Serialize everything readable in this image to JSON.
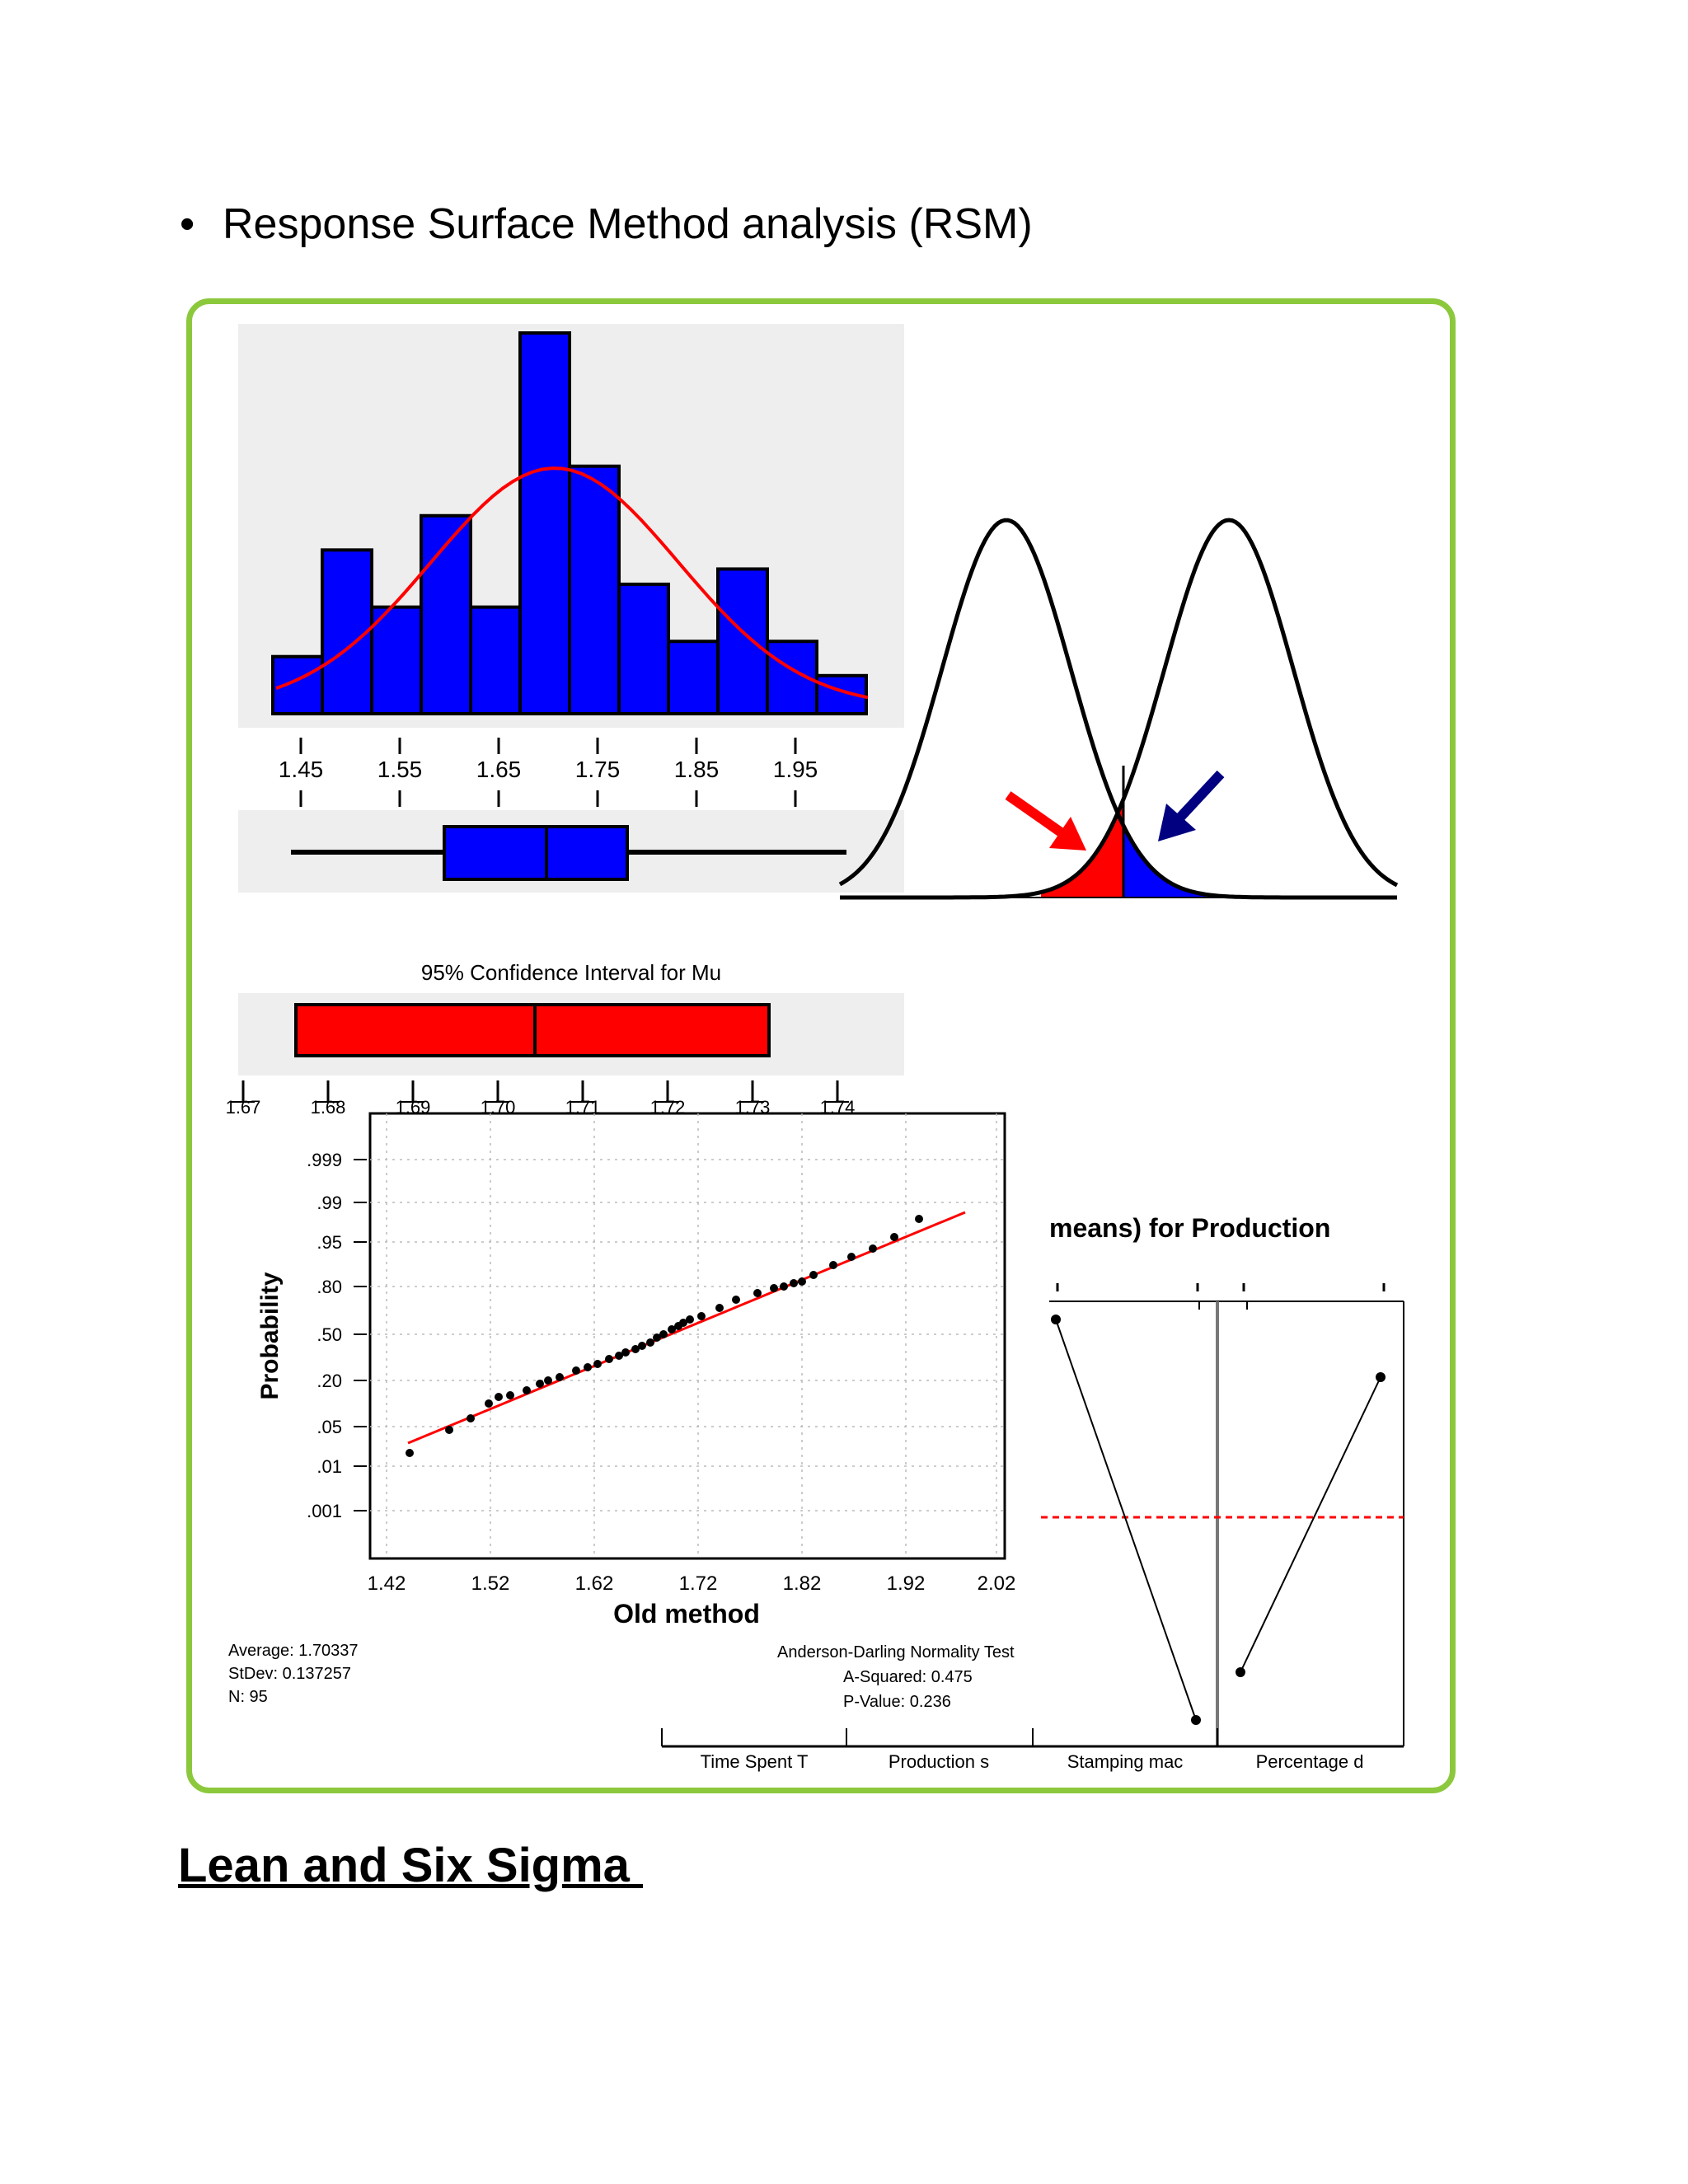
{
  "bullet": {
    "symbol": "•",
    "text": "Response Surface Method analysis (RSM)"
  },
  "heading": "Lean and Six Sigma ",
  "colors": {
    "frame": "#8cc83c",
    "bar": "#0000ff",
    "fit_curve": "#ff0000",
    "ci_bar": "#ff0000",
    "panel_bg": "#eeeeee",
    "arrow_left": "#ff0000",
    "arrow_right": "#000080"
  },
  "figure": {
    "histogram": {
      "x_ticks": [
        "1.45",
        "1.55",
        "1.65",
        "1.75",
        "1.85",
        "1.95"
      ],
      "bar_heights": [
        0.15,
        0.43,
        0.28,
        0.52,
        0.28,
        1.0,
        0.65,
        0.34,
        0.19,
        0.38,
        0.19,
        0.1
      ]
    },
    "boxplot": {
      "whisker_low": 1.44,
      "q1": 1.59,
      "median": 1.67,
      "q3": 1.76,
      "whisker_high": 2.01
    },
    "ci": {
      "title": "95% Confidence Interval for Mu",
      "tick_labels": [
        "1.67",
        "1.68",
        "1.69",
        "1.70",
        "1.71",
        "1.72",
        "1.73",
        "1.74"
      ]
    },
    "probability_plot": {
      "ylabel": "Probability",
      "xlabel": "Old method",
      "y_ticks": [
        ".999",
        ".99",
        ".95",
        ".80",
        ".50",
        ".20",
        ".05",
        ".01",
        ".001"
      ],
      "x_ticks": [
        "1.42",
        "1.52",
        "1.62",
        "1.72",
        "1.82",
        "1.92",
        "2.02"
      ],
      "stats": [
        "Average: 1.70337",
        "StDev: 0.137257",
        "N: 95"
      ],
      "test": [
        "Anderson-Darling Normality Test",
        "A-Squared: 0.475",
        "P-Value:   0.236"
      ]
    },
    "main_effects": {
      "title": "means) for Production",
      "categories": [
        "Time Spent T",
        "Production s",
        "Stamping mac",
        "Percentage d"
      ]
    }
  }
}
